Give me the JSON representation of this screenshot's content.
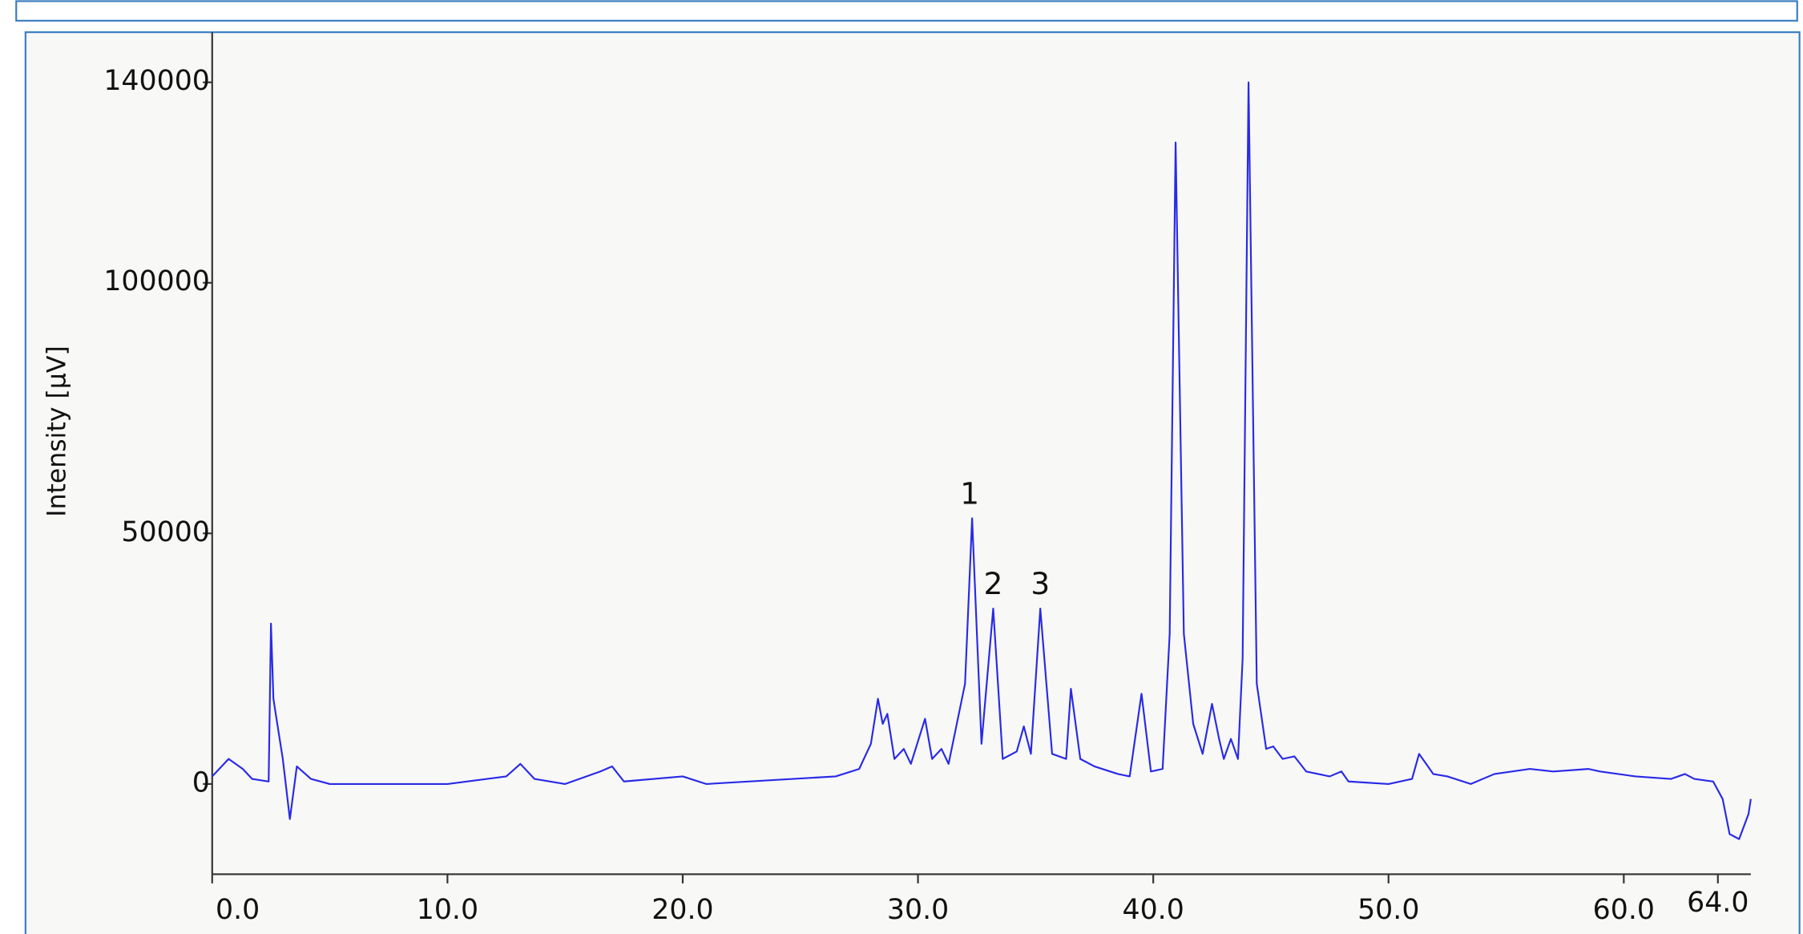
{
  "chart_data": {
    "type": "line",
    "y_label": "Intensity [µV]",
    "xlim": [
      0,
      65.4
    ],
    "ylim": [
      -18000,
      150000
    ],
    "xticks": [
      {
        "value": 0,
        "label": "0.0"
      },
      {
        "value": 10,
        "label": "10.0"
      },
      {
        "value": 20,
        "label": "20.0"
      },
      {
        "value": 30,
        "label": "30.0"
      },
      {
        "value": 40,
        "label": "40.0"
      },
      {
        "value": 50,
        "label": "50.0"
      },
      {
        "value": 60,
        "label": "60.0"
      },
      {
        "value": 64,
        "label": "64.0"
      }
    ],
    "yticks": [
      0,
      50000,
      100000,
      140000
    ],
    "grid": false,
    "series": [
      {
        "color": "#2a2ae8",
        "x": [
          0,
          0.7,
          1.3,
          1.7,
          2.4,
          2.5,
          2.6,
          2.7,
          3.0,
          3.3,
          3.6,
          4.2,
          5.0,
          10.0,
          12.5,
          13.1,
          13.7,
          15,
          16.5,
          17.0,
          17.5,
          20.0,
          21,
          26.5,
          27.5,
          28.0,
          28.3,
          28.5,
          28.7,
          29.0,
          29.4,
          29.7,
          30.3,
          30.6,
          31.0,
          31.3,
          32.0,
          32.3,
          32.7,
          33.2,
          33.6,
          34.2,
          34.5,
          34.8,
          35.2,
          35.7,
          36.3,
          36.5,
          36.9,
          37.5,
          38.5,
          39.0,
          39.5,
          39.9,
          40.4,
          40.7,
          40.95,
          41.3,
          41.7,
          42.1,
          42.5,
          42.8,
          43.0,
          43.3,
          43.6,
          43.8,
          44.05,
          44.4,
          44.8,
          45.1,
          45.5,
          46.0,
          46.5,
          47.5,
          48.0,
          48.3,
          50,
          51.0,
          51.3,
          51.6,
          51.9,
          52.5,
          53.5,
          54.5,
          56,
          57,
          58.5,
          59,
          60.5,
          62.0,
          62.6,
          63.0,
          63.8,
          64.2,
          64.5,
          64.9,
          65.3,
          65.4
        ],
        "values": [
          1500,
          5000,
          3000,
          1000,
          500,
          32000,
          17000,
          14000,
          5000,
          -7000,
          3500,
          1000,
          0,
          0,
          1500,
          4000,
          1000,
          0,
          2500,
          3500,
          500,
          1500,
          0,
          1500,
          3000,
          8000,
          17000,
          12000,
          14000,
          5000,
          7000,
          4000,
          13000,
          5000,
          7000,
          4000,
          20000,
          53000,
          8000,
          35000,
          5000,
          6500,
          11500,
          6000,
          35000,
          6000,
          5000,
          19000,
          5000,
          3500,
          2000,
          1500,
          18000,
          2500,
          3000,
          30000,
          128000,
          30000,
          12000,
          6000,
          16000,
          9000,
          5000,
          9000,
          5000,
          25000,
          140000,
          20000,
          7000,
          7500,
          5000,
          5500,
          2500,
          1500,
          2500,
          500,
          0,
          1000,
          6000,
          4000,
          2000,
          1500,
          0,
          2000,
          3000,
          2500,
          3000,
          2500,
          1500,
          1000,
          2000,
          1000,
          500,
          -3000,
          -10000,
          -11000,
          -6000,
          -3000
        ]
      }
    ],
    "annotations": [
      {
        "text": "1",
        "x": 32.2,
        "y": 53000
      },
      {
        "text": "2",
        "x": 33.2,
        "y": 35000
      },
      {
        "text": "3",
        "x": 35.2,
        "y": 35000
      }
    ]
  }
}
